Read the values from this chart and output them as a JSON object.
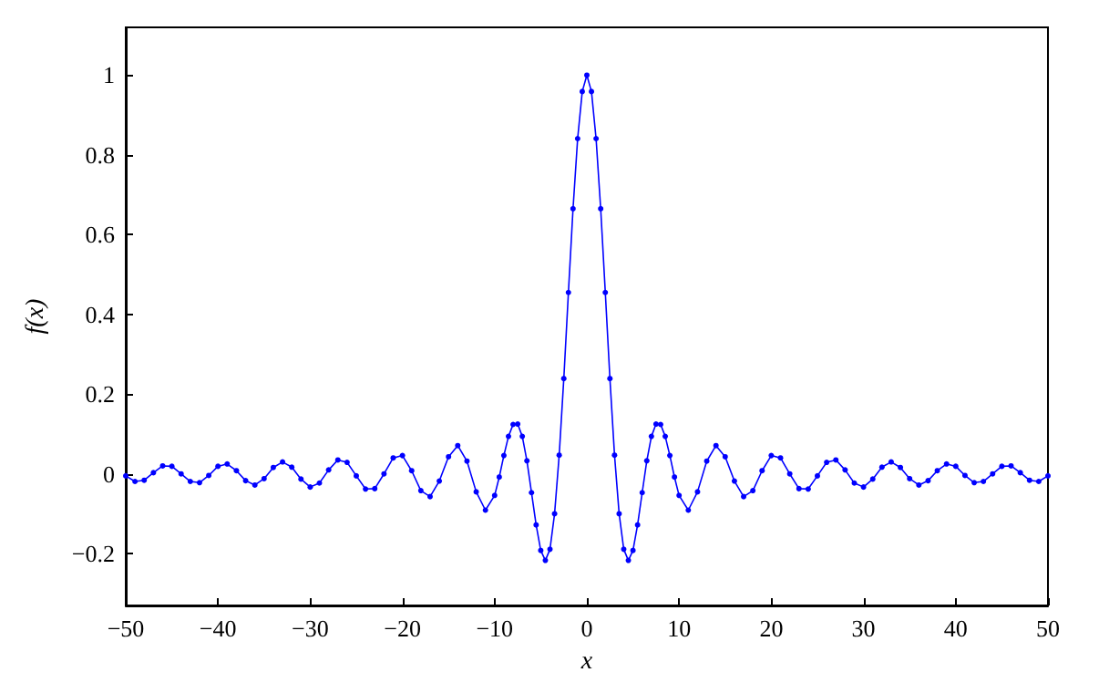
{
  "chart_data": {
    "type": "line",
    "xlabel": "x",
    "ylabel": "f(x)",
    "xlim": [
      -50,
      50
    ],
    "ylim": [
      -0.33,
      1.12
    ],
    "xticks": [
      -50,
      -40,
      -30,
      -20,
      -10,
      0,
      10,
      20,
      30,
      40,
      50
    ],
    "yticks": [
      -0.2,
      0,
      0.2,
      0.4,
      0.6,
      0.8,
      1
    ],
    "grid": false,
    "marker": "circle",
    "line_style": "solid",
    "x": [
      -50,
      -49,
      -48,
      -47,
      -46,
      -45,
      -44,
      -43,
      -42,
      -41,
      -40,
      -39,
      -38,
      -37,
      -36,
      -35,
      -34,
      -33,
      -32,
      -31,
      -30,
      -29,
      -28,
      -27,
      -26,
      -25,
      -24,
      -23,
      -22,
      -21,
      -20,
      -19,
      -18,
      -17,
      -16,
      -15,
      -14,
      -13,
      -12,
      -11,
      -10,
      -9.5,
      -9,
      -8.5,
      -8,
      -7.5,
      -7,
      -6.5,
      -6,
      -5.5,
      -5,
      -4.5,
      -4,
      -3.5,
      -3,
      -2.5,
      -2,
      -1.5,
      -1,
      -0.5,
      0,
      0.5,
      1,
      1.5,
      2,
      2.5,
      3,
      3.5,
      4,
      4.5,
      5,
      5.5,
      6,
      6.5,
      7,
      7.5,
      8,
      8.5,
      9,
      9.5,
      10,
      11,
      12,
      13,
      14,
      15,
      16,
      17,
      18,
      19,
      20,
      21,
      22,
      23,
      24,
      25,
      26,
      27,
      28,
      29,
      30,
      31,
      32,
      33,
      34,
      35,
      36,
      37,
      38,
      39,
      40,
      41,
      42,
      43,
      44,
      45,
      46,
      47,
      48,
      49,
      50
    ],
    "series": [
      {
        "color": "#0000ff",
        "values": [
          -0.005,
          -0.019,
          -0.016,
          0.003,
          0.02,
          0.019,
          0.0,
          -0.019,
          -0.022,
          -0.004,
          0.019,
          0.025,
          0.008,
          -0.017,
          -0.028,
          -0.012,
          0.016,
          0.03,
          0.017,
          -0.013,
          -0.033,
          -0.023,
          0.01,
          0.035,
          0.029,
          -0.005,
          -0.038,
          -0.037,
          0.0,
          0.04,
          0.046,
          0.008,
          -0.042,
          -0.057,
          -0.018,
          0.043,
          0.071,
          0.032,
          -0.045,
          -0.091,
          -0.054,
          -0.008,
          0.046,
          0.094,
          0.124,
          0.125,
          0.094,
          0.033,
          -0.047,
          -0.128,
          -0.192,
          -0.217,
          -0.189,
          -0.1,
          0.047,
          0.239,
          0.455,
          0.665,
          0.841,
          0.959,
          1,
          0.959,
          0.841,
          0.665,
          0.455,
          0.239,
          0.047,
          -0.1,
          -0.189,
          -0.217,
          -0.192,
          -0.128,
          -0.047,
          0.033,
          0.094,
          0.125,
          0.124,
          0.094,
          0.046,
          -0.008,
          -0.054,
          -0.091,
          -0.045,
          0.032,
          0.071,
          0.043,
          -0.018,
          -0.057,
          -0.042,
          0.008,
          0.046,
          0.04,
          0.0,
          -0.037,
          -0.038,
          -0.005,
          0.029,
          0.035,
          0.01,
          -0.023,
          -0.033,
          -0.013,
          0.017,
          0.03,
          0.016,
          -0.012,
          -0.028,
          -0.017,
          0.008,
          0.025,
          0.019,
          -0.004,
          -0.022,
          -0.019,
          0.0,
          0.019,
          0.02,
          0.003,
          -0.016,
          -0.019,
          -0.005
        ]
      }
    ]
  }
}
